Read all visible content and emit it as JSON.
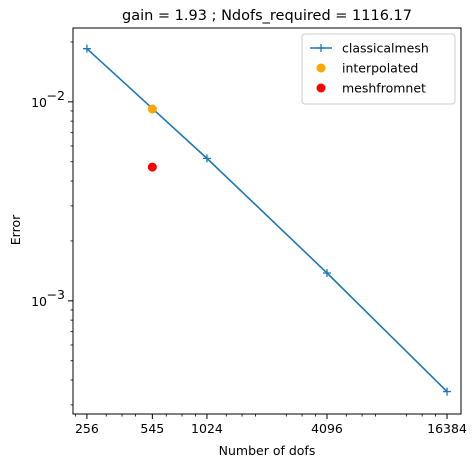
{
  "chart_data": {
    "type": "line",
    "title": "gain = 1.93 ; Ndofs_required = 1116.17",
    "xlabel": "Number of dofs",
    "ylabel": "Error",
    "x_scale": "log2",
    "y_scale": "log10",
    "xlim": [
      218,
      19250
    ],
    "ylim": [
      0.00027,
      0.0235
    ],
    "x_ticks": [
      {
        "value": 256,
        "label": "256",
        "color": "#000000"
      },
      {
        "value": 545,
        "label": "545",
        "color": "#ff0000"
      },
      {
        "value": 1024,
        "label": "1024",
        "color": "#000000"
      },
      {
        "value": 4096,
        "label": "4096",
        "color": "#000000"
      },
      {
        "value": 16384,
        "label": "16384",
        "color": "#000000"
      }
    ],
    "y_major_ticks": [
      {
        "value": 0.001,
        "base": "10",
        "exp": "−3"
      },
      {
        "value": 0.01,
        "base": "10",
        "exp": "−2"
      }
    ],
    "legend_position": "top-right",
    "series": [
      {
        "name": "classicalmesh",
        "color": "#1f77b4",
        "style": "line-plus",
        "x": [
          256,
          1024,
          4096,
          16384
        ],
        "y": [
          0.0185,
          0.0052,
          0.00138,
          0.00035
        ]
      },
      {
        "name": "interpolated",
        "color": "#ffa500",
        "style": "dot",
        "x": [
          545
        ],
        "y": [
          0.0092
        ]
      },
      {
        "name": "meshfromnet",
        "color": "#ff0000",
        "style": "dot",
        "x": [
          545
        ],
        "y": [
          0.0047
        ]
      }
    ]
  }
}
